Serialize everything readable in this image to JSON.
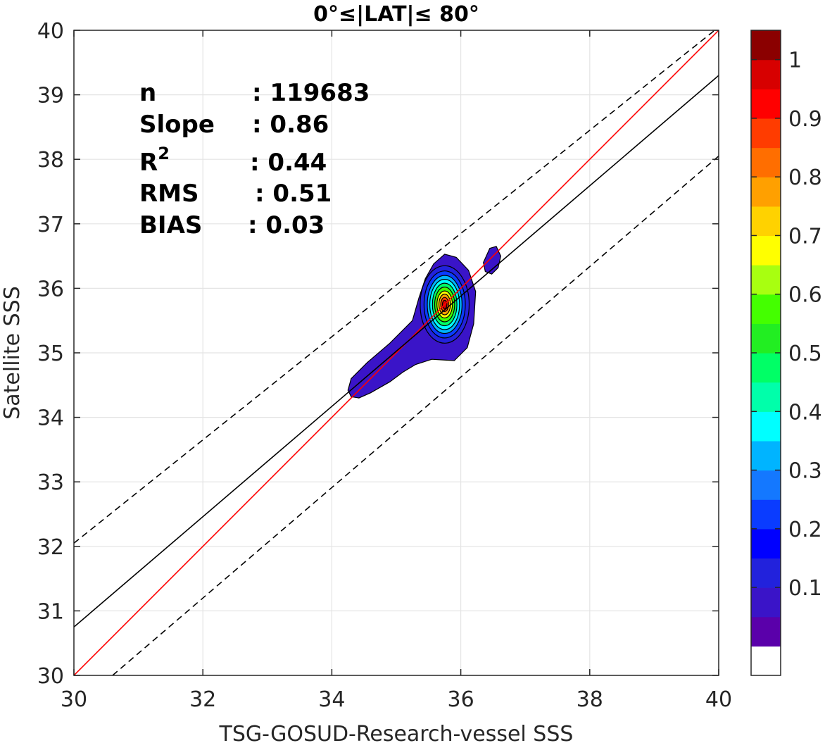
{
  "chart_data": {
    "type": "contour",
    "title": "0°≤|LAT|≤ 80°",
    "xlabel": "TSG-GOSUD-Research-vessel SSS",
    "ylabel": "Satellite SSS",
    "xlim": [
      30,
      40
    ],
    "ylim": [
      30,
      40
    ],
    "xticks": [
      30,
      32,
      34,
      36,
      38,
      40
    ],
    "yticks": [
      30,
      31,
      32,
      33,
      34,
      35,
      36,
      37,
      38,
      39,
      40
    ],
    "grid": true,
    "stats": [
      {
        "label": "n",
        "value": ": 119683"
      },
      {
        "label": "Slope",
        "value": ": 0.86"
      },
      {
        "label": "R",
        "sup": "2",
        "value": ": 0.44"
      },
      {
        "label": "RMS",
        "value": ": 0.51"
      },
      {
        "label": "BIAS",
        "value": ": 0.03"
      }
    ],
    "lines": [
      {
        "role": "one-to-one",
        "color": "#ff0000",
        "style": "solid",
        "points": [
          [
            30,
            30
          ],
          [
            40,
            40
          ]
        ]
      },
      {
        "role": "regression",
        "color": "#000000",
        "style": "solid",
        "points": [
          [
            30,
            30.75
          ],
          [
            40,
            39.3
          ]
        ]
      },
      {
        "role": "upper-bound",
        "color": "#000000",
        "style": "dashed",
        "points": [
          [
            30,
            32.05
          ],
          [
            40,
            40.05
          ]
        ]
      },
      {
        "role": "lower-bound",
        "color": "#000000",
        "style": "dashed",
        "points": [
          [
            30.6,
            30
          ],
          [
            40,
            38.05
          ]
        ]
      }
    ],
    "density_peak": {
      "x": 35.75,
      "y": 35.75
    },
    "colorbar": {
      "ticks": [
        "0.1",
        "0.2",
        "0.3",
        "0.4",
        "0.5",
        "0.6",
        "0.7",
        "0.8",
        "0.9",
        "1"
      ],
      "levels": [
        0,
        0.05,
        0.1,
        0.15,
        0.2,
        0.25,
        0.3,
        0.35,
        0.4,
        0.45,
        0.5,
        0.55,
        0.6,
        0.65,
        0.7,
        0.75,
        0.8,
        0.85,
        0.9,
        0.95,
        1.0
      ],
      "colors": [
        "#ffffff",
        "#5a00aa",
        "#3a14c8",
        "#2222dc",
        "#0000ff",
        "#0a3cff",
        "#1478ff",
        "#00b4ff",
        "#00ffff",
        "#00ffaa",
        "#00ff66",
        "#22ee22",
        "#44ff00",
        "#a8ff10",
        "#ffff00",
        "#ffd200",
        "#ffa000",
        "#ff6e00",
        "#ff3c00",
        "#ff0000",
        "#d70000",
        "#8b0000"
      ]
    }
  }
}
